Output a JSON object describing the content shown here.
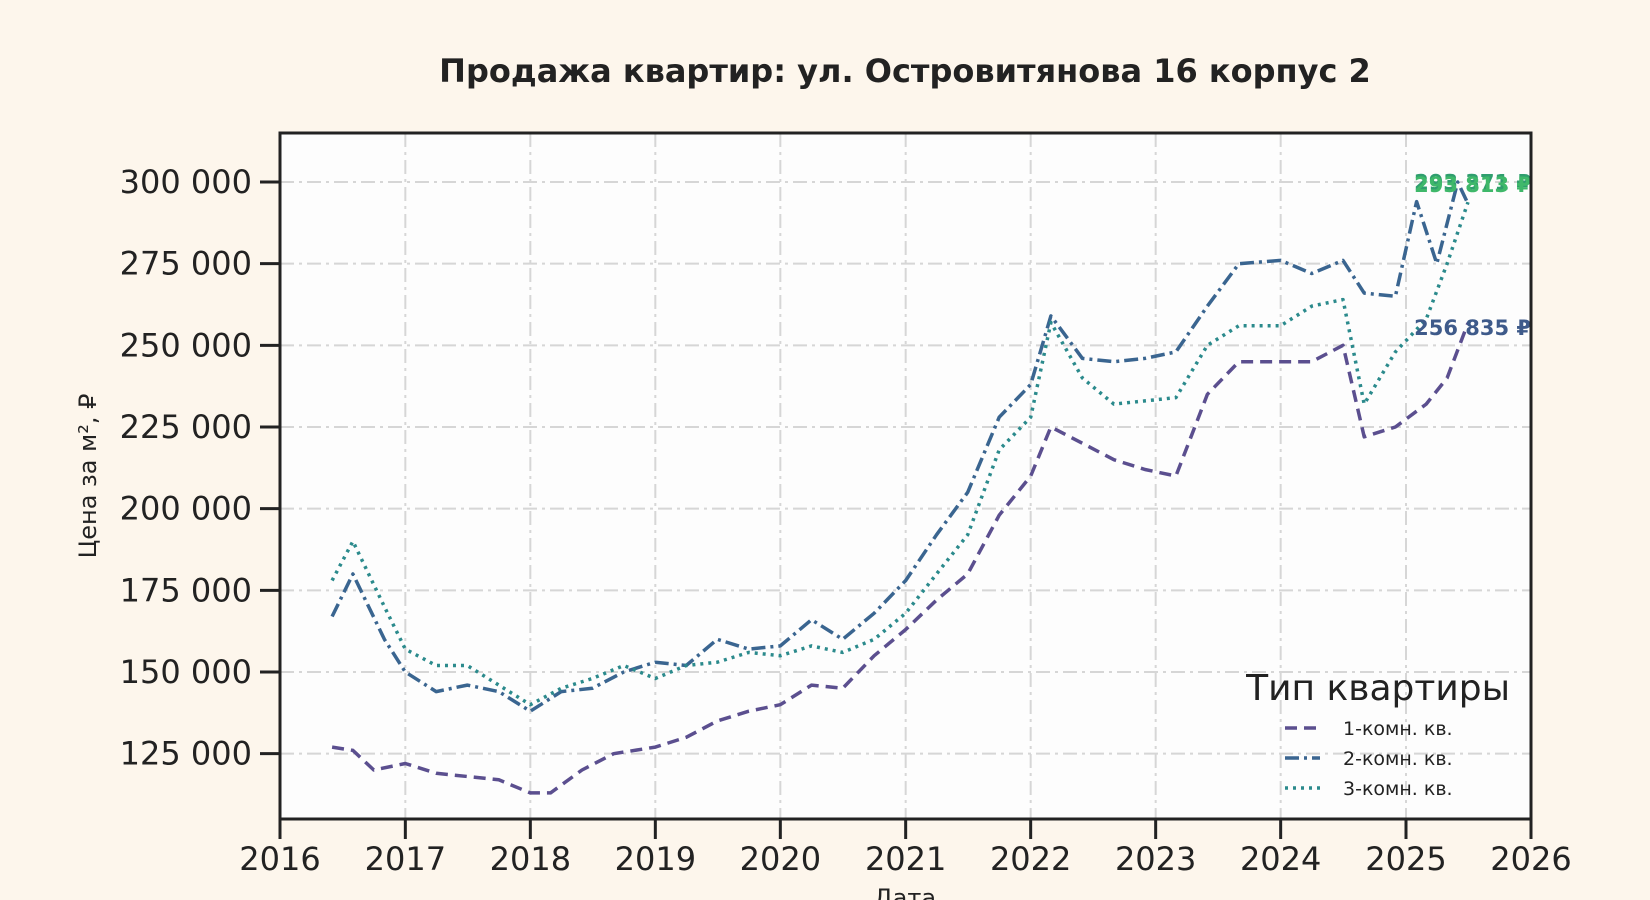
{
  "chart_data": {
    "type": "line",
    "title": "Продажа квартир: ул. Островитянова 16 корпус 2",
    "xlabel": "Дата",
    "ylabel": "Цена за м², ₽",
    "xlim": [
      "2016-01-01",
      "2026-01-01"
    ],
    "ylim": [
      105000,
      315000
    ],
    "x_ticks": [
      "2016",
      "2017",
      "2018",
      "2019",
      "2020",
      "2021",
      "2022",
      "2023",
      "2024",
      "2025",
      "2026"
    ],
    "y_ticks": [
      "125 000",
      "150 000",
      "175 000",
      "200 000",
      "225 000",
      "250 000",
      "275 000",
      "300 000"
    ],
    "y_tick_values": [
      125000,
      150000,
      175000,
      200000,
      225000,
      250000,
      275000,
      300000
    ],
    "grid": true,
    "legend": {
      "title": "Тип квартиры",
      "position": "bottom-right"
    },
    "series": [
      {
        "name": "1-комн. кв.",
        "color": "#5b4f8f",
        "style": "dashed",
        "end_label": "256 835 ₽",
        "points": [
          [
            "2016-06-01",
            127000
          ],
          [
            "2016-08-01",
            126000
          ],
          [
            "2016-10-01",
            120000
          ],
          [
            "2017-01-01",
            122000
          ],
          [
            "2017-04-01",
            119000
          ],
          [
            "2017-07-01",
            118000
          ],
          [
            "2017-10-01",
            117000
          ],
          [
            "2018-01-01",
            113000
          ],
          [
            "2018-03-01",
            113000
          ],
          [
            "2018-06-01",
            120000
          ],
          [
            "2018-09-01",
            125000
          ],
          [
            "2019-01-01",
            127000
          ],
          [
            "2019-04-01",
            130000
          ],
          [
            "2019-07-01",
            135000
          ],
          [
            "2019-10-01",
            138000
          ],
          [
            "2020-01-01",
            140000
          ],
          [
            "2020-04-01",
            146000
          ],
          [
            "2020-07-01",
            145000
          ],
          [
            "2020-10-01",
            155000
          ],
          [
            "2021-01-01",
            163000
          ],
          [
            "2021-04-01",
            172000
          ],
          [
            "2021-07-01",
            180000
          ],
          [
            "2021-10-01",
            198000
          ],
          [
            "2022-01-01",
            210000
          ],
          [
            "2022-03-01",
            225000
          ],
          [
            "2022-06-01",
            220000
          ],
          [
            "2022-09-01",
            215000
          ],
          [
            "2022-12-01",
            212000
          ],
          [
            "2023-03-01",
            210000
          ],
          [
            "2023-06-01",
            235000
          ],
          [
            "2023-09-01",
            245000
          ],
          [
            "2024-01-01",
            245000
          ],
          [
            "2024-04-01",
            245000
          ],
          [
            "2024-07-01",
            250000
          ],
          [
            "2024-09-01",
            222000
          ],
          [
            "2024-12-01",
            225000
          ],
          [
            "2025-03-01",
            232000
          ],
          [
            "2025-05-01",
            240000
          ],
          [
            "2025-07-01",
            256835
          ]
        ]
      },
      {
        "name": "2-комн. кв.",
        "color": "#3a6590",
        "style": "dash-dot",
        "end_label": "293 371 ₽",
        "points": [
          [
            "2016-06-01",
            167000
          ],
          [
            "2016-08-01",
            180000
          ],
          [
            "2016-11-01",
            160000
          ],
          [
            "2017-01-01",
            150000
          ],
          [
            "2017-04-01",
            144000
          ],
          [
            "2017-07-01",
            146000
          ],
          [
            "2017-10-01",
            144000
          ],
          [
            "2018-01-01",
            138000
          ],
          [
            "2018-04-01",
            144000
          ],
          [
            "2018-07-01",
            145000
          ],
          [
            "2018-10-01",
            150000
          ],
          [
            "2019-01-01",
            153000
          ],
          [
            "2019-04-01",
            152000
          ],
          [
            "2019-07-01",
            160000
          ],
          [
            "2019-10-01",
            157000
          ],
          [
            "2020-01-01",
            158000
          ],
          [
            "2020-04-01",
            166000
          ],
          [
            "2020-07-01",
            160000
          ],
          [
            "2020-10-01",
            168000
          ],
          [
            "2021-01-01",
            178000
          ],
          [
            "2021-04-01",
            192000
          ],
          [
            "2021-07-01",
            205000
          ],
          [
            "2021-10-01",
            228000
          ],
          [
            "2022-01-01",
            238000
          ],
          [
            "2022-03-01",
            259000
          ],
          [
            "2022-06-01",
            246000
          ],
          [
            "2022-09-01",
            245000
          ],
          [
            "2022-12-01",
            246000
          ],
          [
            "2023-03-01",
            248000
          ],
          [
            "2023-06-01",
            262000
          ],
          [
            "2023-09-01",
            275000
          ],
          [
            "2024-01-01",
            276000
          ],
          [
            "2024-04-01",
            272000
          ],
          [
            "2024-07-01",
            276000
          ],
          [
            "2024-09-01",
            266000
          ],
          [
            "2024-12-01",
            265000
          ],
          [
            "2025-02-01",
            294000
          ],
          [
            "2025-04-01",
            275000
          ],
          [
            "2025-06-01",
            300000
          ],
          [
            "2025-07-01",
            293371
          ]
        ]
      },
      {
        "name": "3-комн. кв.",
        "color": "#2b8a8c",
        "style": "dotted",
        "end_label": "293 813 ₽",
        "points": [
          [
            "2016-06-01",
            178000
          ],
          [
            "2016-08-01",
            190000
          ],
          [
            "2016-11-01",
            170000
          ],
          [
            "2017-01-01",
            157000
          ],
          [
            "2017-04-01",
            152000
          ],
          [
            "2017-07-01",
            152000
          ],
          [
            "2017-10-01",
            146000
          ],
          [
            "2018-01-01",
            140000
          ],
          [
            "2018-04-01",
            145000
          ],
          [
            "2018-07-01",
            148000
          ],
          [
            "2018-10-01",
            152000
          ],
          [
            "2019-01-01",
            148000
          ],
          [
            "2019-04-01",
            152000
          ],
          [
            "2019-07-01",
            153000
          ],
          [
            "2019-10-01",
            156000
          ],
          [
            "2020-01-01",
            155000
          ],
          [
            "2020-04-01",
            158000
          ],
          [
            "2020-07-01",
            156000
          ],
          [
            "2020-10-01",
            160000
          ],
          [
            "2021-01-01",
            168000
          ],
          [
            "2021-04-01",
            180000
          ],
          [
            "2021-07-01",
            192000
          ],
          [
            "2021-10-01",
            218000
          ],
          [
            "2022-01-01",
            228000
          ],
          [
            "2022-03-01",
            257000
          ],
          [
            "2022-06-01",
            240000
          ],
          [
            "2022-09-01",
            232000
          ],
          [
            "2022-12-01",
            233000
          ],
          [
            "2023-03-01",
            234000
          ],
          [
            "2023-06-01",
            250000
          ],
          [
            "2023-09-01",
            256000
          ],
          [
            "2024-01-01",
            256000
          ],
          [
            "2024-04-01",
            262000
          ],
          [
            "2024-07-01",
            264000
          ],
          [
            "2024-09-01",
            232000
          ],
          [
            "2024-12-01",
            248000
          ],
          [
            "2025-03-01",
            258000
          ],
          [
            "2025-05-01",
            275000
          ],
          [
            "2025-07-01",
            293813
          ]
        ]
      }
    ]
  }
}
